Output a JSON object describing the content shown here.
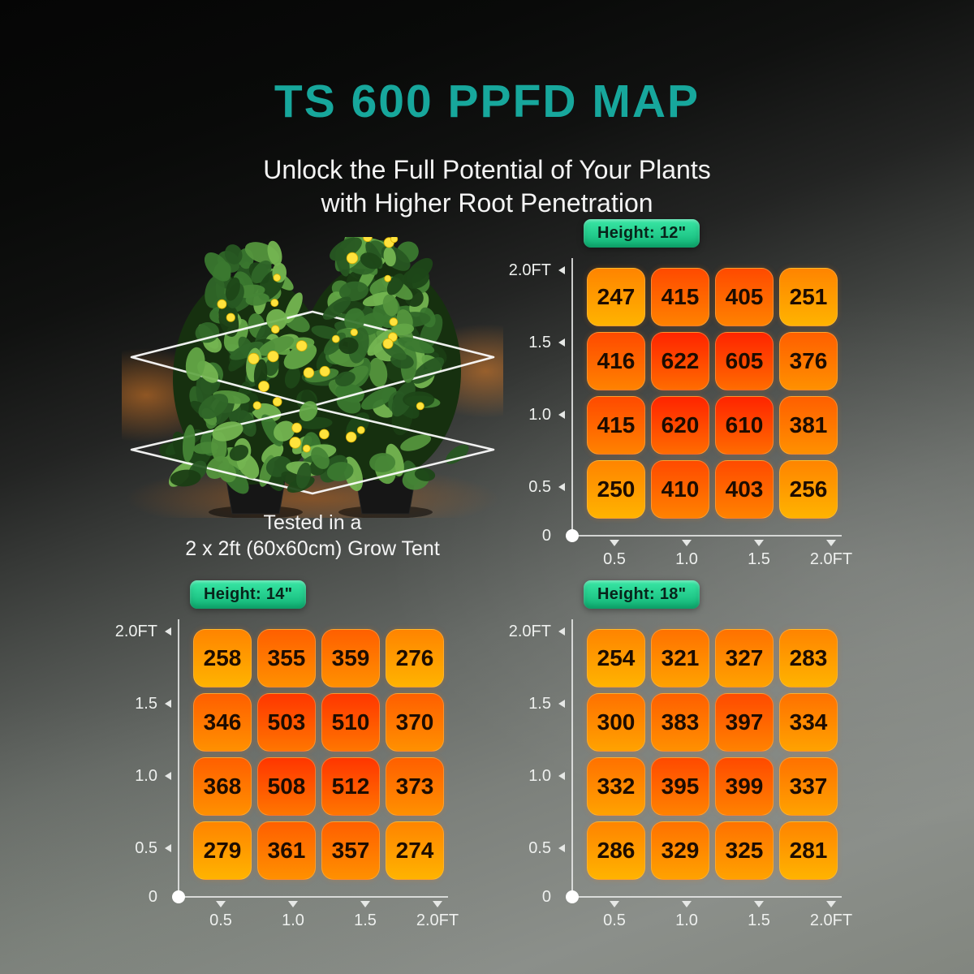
{
  "page": {
    "title": "TS 600 PPFD MAP",
    "subtitle_line1": "Unlock the Full Potential of Your Plants",
    "subtitle_line2": "with Higher Root Penetration",
    "accent_color": "#17a79c",
    "badge_gradient_top": "#3ae8a6",
    "badge_gradient_bottom": "#11b577",
    "axis_color": "#e6e8e6",
    "heat_scale": [
      {
        "min": 575,
        "top": "#ff2400",
        "bottom": "#ff6c00"
      },
      {
        "min": 460,
        "top": "#ff3600",
        "bottom": "#ff7600"
      },
      {
        "min": 385,
        "top": "#ff4a00",
        "bottom": "#ff8200"
      },
      {
        "min": 340,
        "top": "#ff5f00",
        "bottom": "#ff9000"
      },
      {
        "min": 290,
        "top": "#ff7100",
        "bottom": "#ffa200"
      },
      {
        "min": 0,
        "top": "#ff8400",
        "bottom": "#ffb300"
      }
    ]
  },
  "plant_figure": {
    "caption_line1": "Tested in a",
    "caption_line2": "2 x 2ft (60x60cm) Grow Tent"
  },
  "chart_data": [
    {
      "type": "heatmap",
      "title": "Height: 12\"",
      "x_ticks": [
        "0.5",
        "1.0",
        "1.5",
        "2.0FT"
      ],
      "y_ticks": [
        "2.0FT",
        "1.5",
        "1.0",
        "0.5",
        "0"
      ],
      "rows": [
        [
          247,
          415,
          405,
          251
        ],
        [
          416,
          622,
          605,
          376
        ],
        [
          415,
          620,
          610,
          381
        ],
        [
          250,
          410,
          403,
          256
        ]
      ]
    },
    {
      "type": "heatmap",
      "title": "Height: 14\"",
      "x_ticks": [
        "0.5",
        "1.0",
        "1.5",
        "2.0FT"
      ],
      "y_ticks": [
        "2.0FT",
        "1.5",
        "1.0",
        "0.5",
        "0"
      ],
      "rows": [
        [
          258,
          355,
          359,
          276
        ],
        [
          346,
          503,
          510,
          370
        ],
        [
          368,
          508,
          512,
          373
        ],
        [
          279,
          361,
          357,
          274
        ]
      ]
    },
    {
      "type": "heatmap",
      "title": "Height: 18\"",
      "x_ticks": [
        "0.5",
        "1.0",
        "1.5",
        "2.0FT"
      ],
      "y_ticks": [
        "2.0FT",
        "1.5",
        "1.0",
        "0.5",
        "0"
      ],
      "rows": [
        [
          254,
          321,
          327,
          283
        ],
        [
          300,
          383,
          397,
          334
        ],
        [
          332,
          395,
          399,
          337
        ],
        [
          286,
          329,
          325,
          281
        ]
      ]
    }
  ]
}
